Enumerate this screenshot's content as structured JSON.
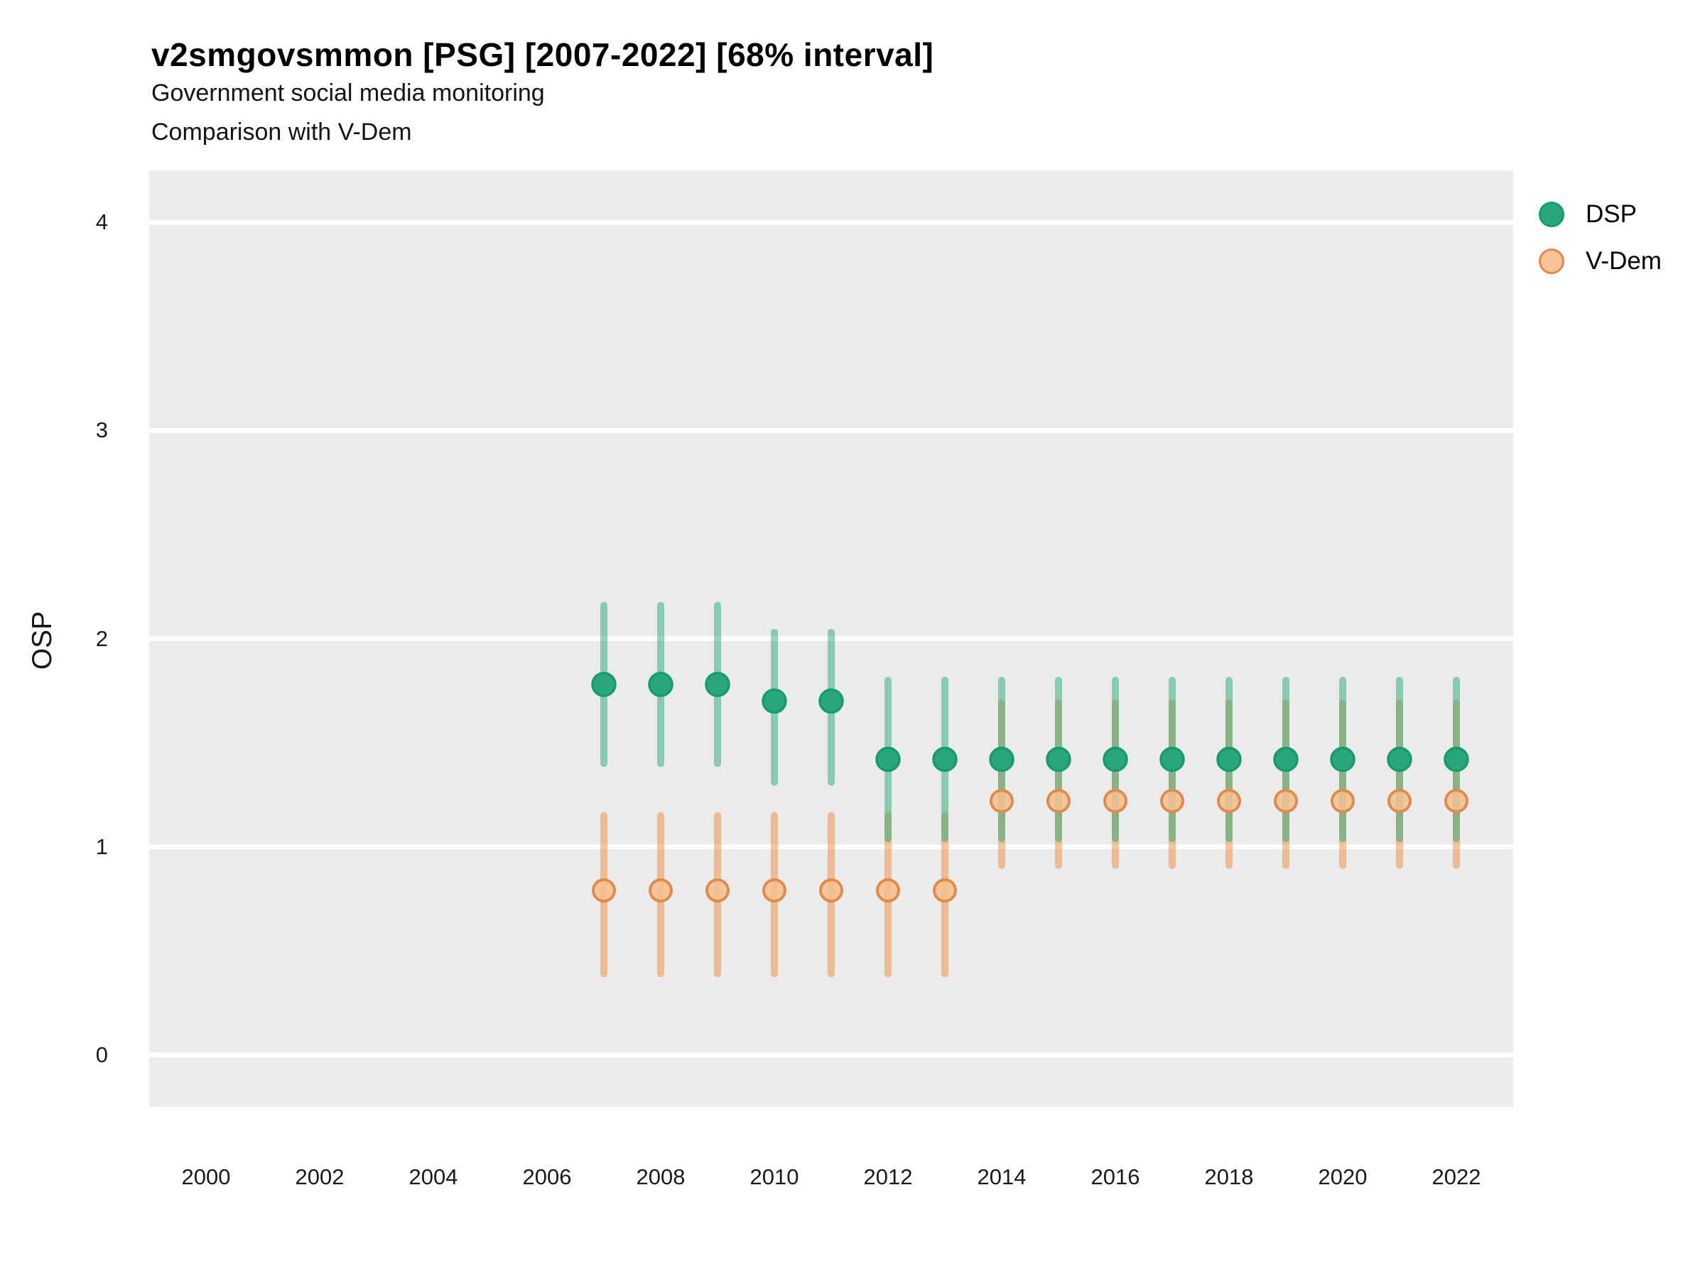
{
  "header": {
    "title": "v2smgovsmmon [PSG] [2007-2022] [68% interval]",
    "subtitle1": "Government social media monitoring",
    "subtitle2": "Comparison with V-Dem"
  },
  "colors": {
    "panel_background": "#EBEBEB",
    "gridline": "#FFFFFF",
    "dsp_point_fill": "#29A77B",
    "dsp_point_stroke": "#169C69",
    "dsp_interval": "rgba(39,170,122,0.5)",
    "vdem_point_fill": "rgba(246,190,142,0.85)",
    "vdem_point_stroke": "#DE8C4E",
    "vdem_interval": "rgba(240,140,60,0.5)"
  },
  "chart_data": {
    "type": "scatter",
    "title": "v2smgovsmmon [PSG] [2007-2022] [68% interval]",
    "subtitle": [
      "Government social media monitoring",
      "Comparison with V-Dem"
    ],
    "xlabel": "",
    "ylabel": "OSP",
    "interval": "68%",
    "grid": "horizontal-major-only",
    "legend_position": "right",
    "x_ticks": [
      2000,
      2002,
      2004,
      2006,
      2008,
      2010,
      2012,
      2014,
      2016,
      2018,
      2020,
      2022
    ],
    "y_ticks": [
      0,
      1,
      2,
      3,
      4
    ],
    "xlim": [
      1999,
      2023
    ],
    "ylim": [
      -0.25,
      4.25
    ],
    "series": [
      {
        "name": "DSP",
        "color": "#29A77B",
        "points": [
          {
            "year": 2007,
            "value": 1.78,
            "lo": 1.4,
            "hi": 2.16
          },
          {
            "year": 2008,
            "value": 1.78,
            "lo": 1.4,
            "hi": 2.16
          },
          {
            "year": 2009,
            "value": 1.78,
            "lo": 1.4,
            "hi": 2.16
          },
          {
            "year": 2010,
            "value": 1.7,
            "lo": 1.31,
            "hi": 2.03
          },
          {
            "year": 2011,
            "value": 1.7,
            "lo": 1.31,
            "hi": 2.03
          },
          {
            "year": 2012,
            "value": 1.42,
            "lo": 1.04,
            "hi": 1.8
          },
          {
            "year": 2013,
            "value": 1.42,
            "lo": 1.04,
            "hi": 1.8
          },
          {
            "year": 2014,
            "value": 1.42,
            "lo": 1.04,
            "hi": 1.8
          },
          {
            "year": 2015,
            "value": 1.42,
            "lo": 1.04,
            "hi": 1.8
          },
          {
            "year": 2016,
            "value": 1.42,
            "lo": 1.04,
            "hi": 1.8
          },
          {
            "year": 2017,
            "value": 1.42,
            "lo": 1.04,
            "hi": 1.8
          },
          {
            "year": 2018,
            "value": 1.42,
            "lo": 1.04,
            "hi": 1.8
          },
          {
            "year": 2019,
            "value": 1.42,
            "lo": 1.04,
            "hi": 1.8
          },
          {
            "year": 2020,
            "value": 1.42,
            "lo": 1.04,
            "hi": 1.8
          },
          {
            "year": 2021,
            "value": 1.42,
            "lo": 1.04,
            "hi": 1.8
          },
          {
            "year": 2022,
            "value": 1.42,
            "lo": 1.04,
            "hi": 1.8
          }
        ]
      },
      {
        "name": "V-Dem",
        "color": "#DE8C4E",
        "points": [
          {
            "year": 2007,
            "value": 0.79,
            "lo": 0.39,
            "hi": 1.15
          },
          {
            "year": 2008,
            "value": 0.79,
            "lo": 0.39,
            "hi": 1.15
          },
          {
            "year": 2009,
            "value": 0.79,
            "lo": 0.39,
            "hi": 1.15
          },
          {
            "year": 2010,
            "value": 0.79,
            "lo": 0.39,
            "hi": 1.15
          },
          {
            "year": 2011,
            "value": 0.79,
            "lo": 0.39,
            "hi": 1.15
          },
          {
            "year": 2012,
            "value": 0.79,
            "lo": 0.39,
            "hi": 1.15
          },
          {
            "year": 2013,
            "value": 0.79,
            "lo": 0.39,
            "hi": 1.15
          },
          {
            "year": 2014,
            "value": 1.22,
            "lo": 0.91,
            "hi": 1.69
          },
          {
            "year": 2015,
            "value": 1.22,
            "lo": 0.91,
            "hi": 1.69
          },
          {
            "year": 2016,
            "value": 1.22,
            "lo": 0.91,
            "hi": 1.69
          },
          {
            "year": 2017,
            "value": 1.22,
            "lo": 0.91,
            "hi": 1.69
          },
          {
            "year": 2018,
            "value": 1.22,
            "lo": 0.91,
            "hi": 1.69
          },
          {
            "year": 2019,
            "value": 1.22,
            "lo": 0.91,
            "hi": 1.69
          },
          {
            "year": 2020,
            "value": 1.22,
            "lo": 0.91,
            "hi": 1.69
          },
          {
            "year": 2021,
            "value": 1.22,
            "lo": 0.91,
            "hi": 1.69
          },
          {
            "year": 2022,
            "value": 1.22,
            "lo": 0.91,
            "hi": 1.69
          }
        ]
      }
    ]
  }
}
